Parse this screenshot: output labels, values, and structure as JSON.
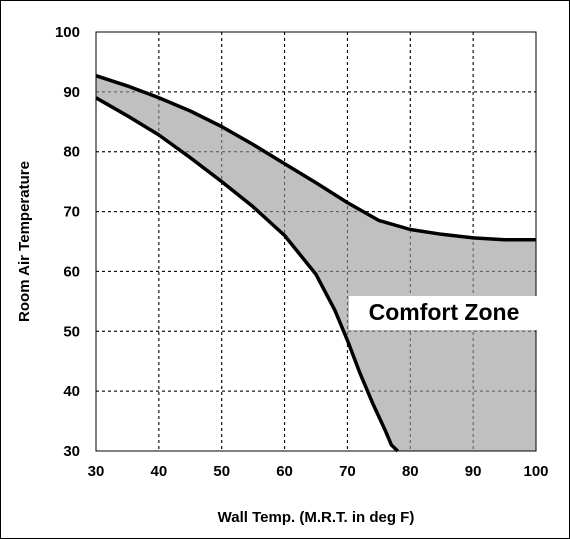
{
  "chart_data": {
    "type": "area",
    "title": "",
    "xlabel": "Wall Temp. (M.R.T. in deg F)",
    "ylabel": "Room Air Temperature",
    "xlim": [
      30,
      100
    ],
    "ylim": [
      30,
      100
    ],
    "x_ticks": [
      30,
      40,
      50,
      60,
      70,
      80,
      90,
      100
    ],
    "y_ticks": [
      30,
      40,
      50,
      60,
      70,
      80,
      90,
      100
    ],
    "grid": true,
    "fill_color": "#c0c0c0",
    "line_color": "#000000",
    "annotation": "Comfort Zone",
    "series": [
      {
        "x": [
          30,
          35,
          40,
          45,
          50,
          55,
          60,
          65,
          70,
          75,
          80,
          85,
          90,
          95,
          100
        ],
        "values": [
          92.7,
          91.0,
          89.0,
          86.8,
          84.2,
          81.2,
          78.0,
          74.8,
          71.5,
          68.5,
          67.0,
          66.2,
          65.6,
          65.3,
          65.3
        ]
      },
      {
        "x": [
          30,
          35,
          40,
          45,
          50,
          55,
          60,
          65,
          68,
          70,
          72,
          74,
          76,
          77,
          78
        ],
        "values": [
          89.0,
          86.0,
          82.8,
          79.0,
          75.0,
          70.8,
          66.0,
          59.5,
          53.5,
          48.5,
          43.0,
          38.0,
          33.5,
          31.0,
          30.0
        ]
      }
    ]
  }
}
